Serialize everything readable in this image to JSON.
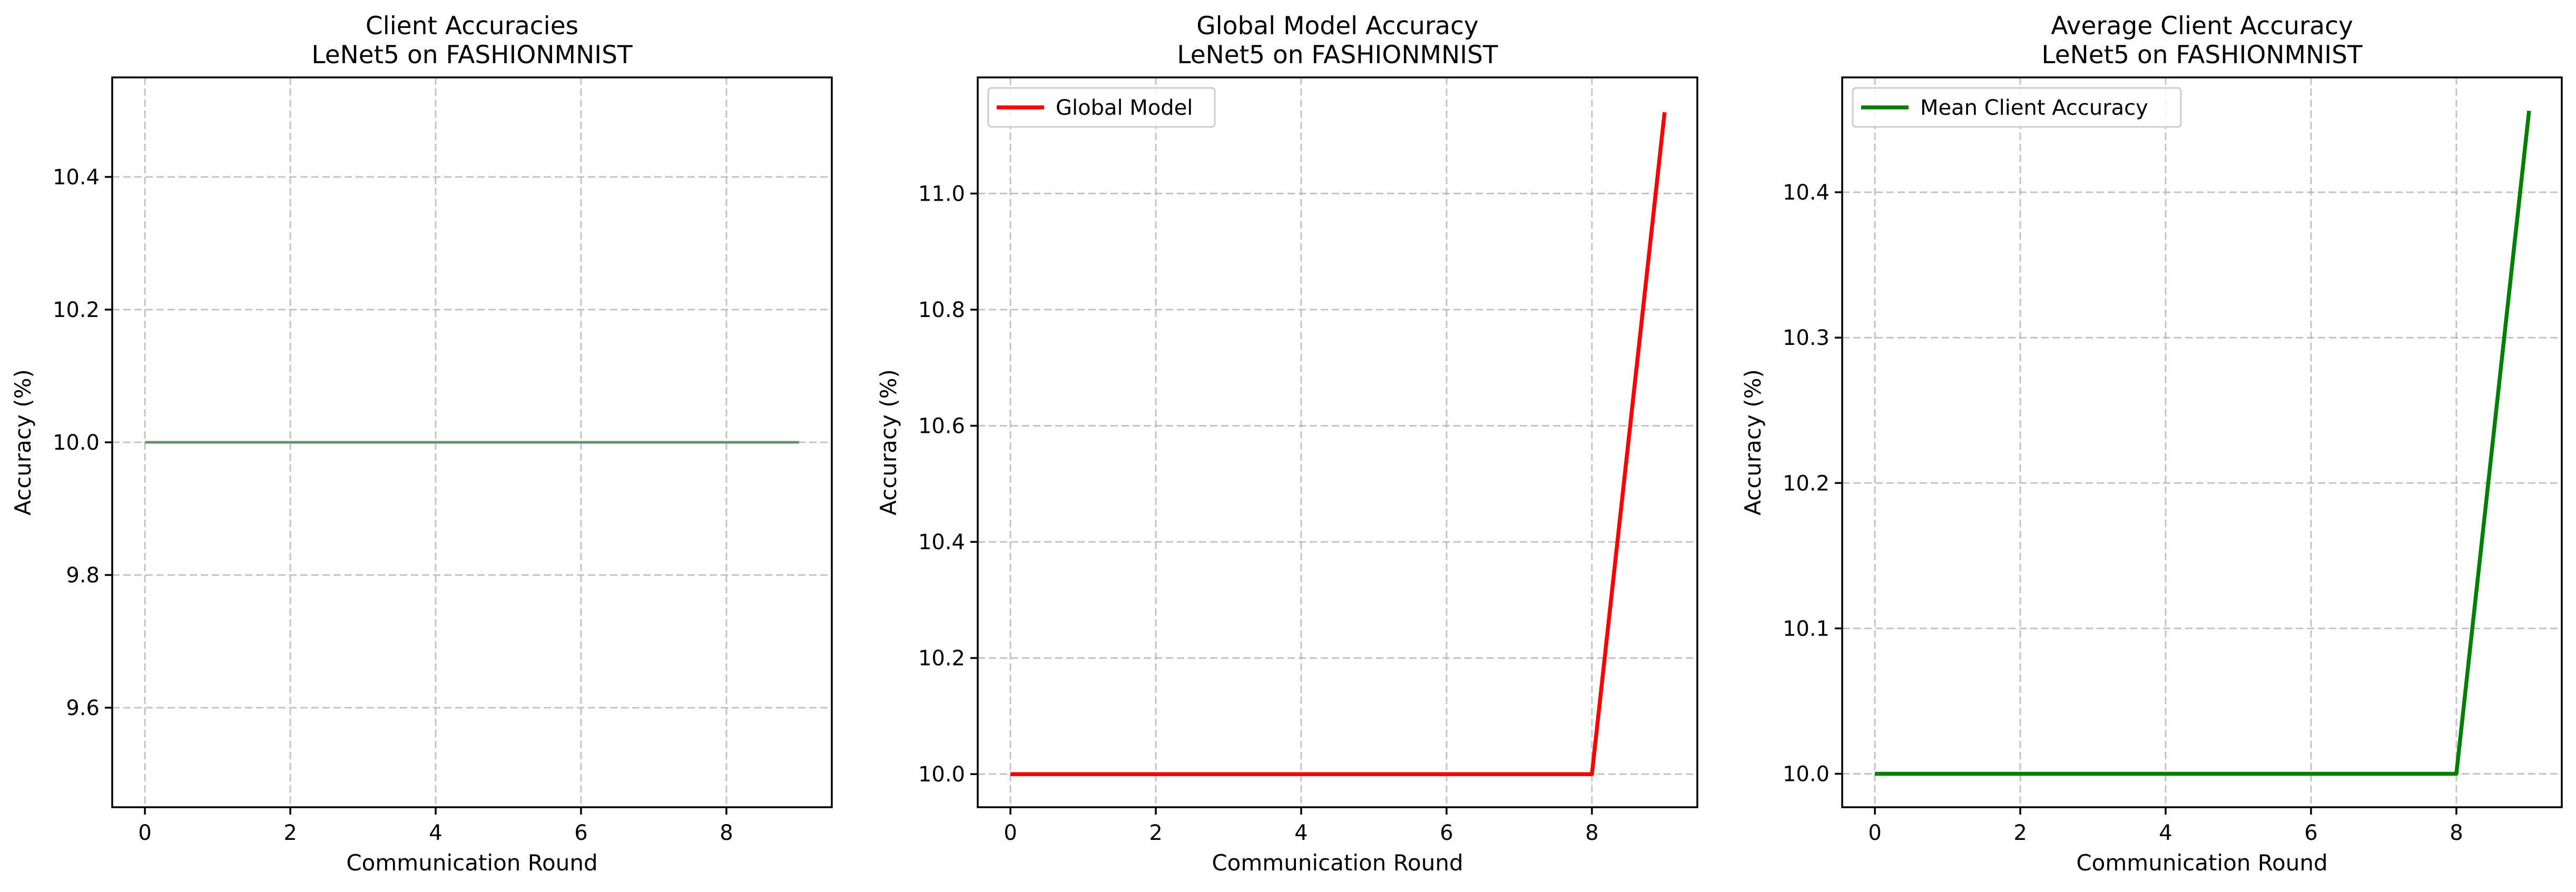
{
  "chart_data": [
    {
      "type": "line",
      "title": [
        "Client Accuracies",
        "LeNet5 on FASHIONMNIST"
      ],
      "xlabel": "Communication Round",
      "ylabel": "Accuracy (%)",
      "xlim": [
        -0.45,
        9.45
      ],
      "ylim": [
        9.45,
        10.55
      ],
      "xticks": [
        0,
        2,
        4,
        6,
        8
      ],
      "yticks": [
        9.6,
        9.8,
        10.0,
        10.2,
        10.4
      ],
      "ytick_labels": [
        "9.6",
        "9.8",
        "10.0",
        "10.2",
        "10.4"
      ],
      "grid": true,
      "legend": null,
      "series": [
        {
          "x": [
            0,
            1,
            2,
            3,
            4,
            5,
            6,
            7,
            8,
            9
          ],
          "values": [
            10,
            10,
            10,
            10,
            10,
            10,
            10,
            10,
            10,
            10
          ],
          "color": "#1f77b4",
          "width": 3,
          "opacity": 0.35
        },
        {
          "x": [
            0,
            1,
            2,
            3,
            4,
            5,
            6,
            7,
            8,
            9
          ],
          "values": [
            10,
            10,
            10,
            10,
            10,
            10,
            10,
            10,
            10,
            10
          ],
          "color": "#ff7f0e",
          "width": 3,
          "opacity": 0.35
        },
        {
          "x": [
            0,
            1,
            2,
            3,
            4,
            5,
            6,
            7,
            8,
            9
          ],
          "values": [
            10,
            10,
            10,
            10,
            10,
            10,
            10,
            10,
            10,
            10
          ],
          "color": "#2ca02c",
          "width": 3,
          "opacity": 0.35
        },
        {
          "x": [
            0,
            1,
            2,
            3,
            4,
            5,
            6,
            7,
            8,
            9
          ],
          "values": [
            10,
            10,
            10,
            10,
            10,
            10,
            10,
            10,
            10,
            10
          ],
          "color": "#d62728",
          "width": 3,
          "opacity": 0.35
        },
        {
          "x": [
            0,
            1,
            2,
            3,
            4,
            5,
            6,
            7,
            8,
            9
          ],
          "values": [
            10,
            10,
            10,
            10,
            10,
            10,
            10,
            10,
            10,
            10
          ],
          "color": "#6b8f73",
          "width": 5,
          "opacity": 1
        }
      ]
    },
    {
      "type": "line",
      "title": [
        "Global Model Accuracy",
        "LeNet5 on FASHIONMNIST"
      ],
      "xlabel": "Communication Round",
      "ylabel": "Accuracy (%)",
      "xlim": [
        -0.45,
        9.45
      ],
      "ylim": [
        9.943,
        11.2
      ],
      "xticks": [
        0,
        2,
        4,
        6,
        8
      ],
      "yticks": [
        10.0,
        10.2,
        10.4,
        10.6,
        10.8,
        11.0
      ],
      "ytick_labels": [
        "10.0",
        "10.2",
        "10.4",
        "10.6",
        "10.8",
        "11.0"
      ],
      "grid": true,
      "legend": "top-left",
      "series": [
        {
          "name": "Global Model",
          "x": [
            0,
            1,
            2,
            3,
            4,
            5,
            6,
            7,
            8,
            9
          ],
          "values": [
            10,
            10,
            10,
            10,
            10,
            10,
            10,
            10,
            10,
            11.14
          ],
          "color": "#ff0000",
          "width": 7.5,
          "opacity": 1
        }
      ]
    },
    {
      "type": "line",
      "title": [
        "Average Client Accuracy",
        "LeNet5 on FASHIONMNIST"
      ],
      "xlabel": "Communication Round",
      "ylabel": "Accuracy (%)",
      "xlim": [
        -0.45,
        9.45
      ],
      "ylim": [
        9.977,
        10.479
      ],
      "xticks": [
        0,
        2,
        4,
        6,
        8
      ],
      "yticks": [
        10.0,
        10.1,
        10.2,
        10.3,
        10.4
      ],
      "ytick_labels": [
        "10.0",
        "10.1",
        "10.2",
        "10.3",
        "10.4"
      ],
      "grid": true,
      "legend": "top-left",
      "series": [
        {
          "name": "Mean Client Accuracy",
          "x": [
            0,
            1,
            2,
            3,
            4,
            5,
            6,
            7,
            8,
            9
          ],
          "values": [
            10,
            10,
            10,
            10,
            10,
            10,
            10,
            10,
            10,
            10.456
          ],
          "color": "#008000",
          "width": 7.5,
          "opacity": 1
        }
      ]
    }
  ]
}
